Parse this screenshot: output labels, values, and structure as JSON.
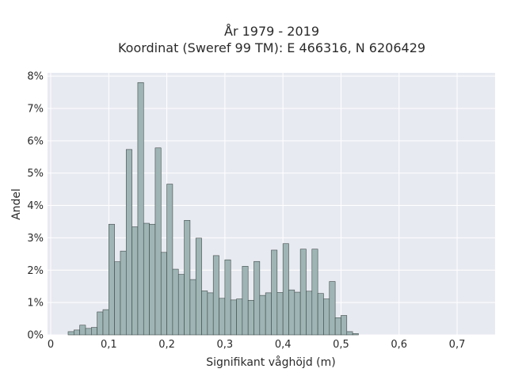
{
  "chart_data": {
    "type": "bar",
    "title": [
      "År 1979 - 2019",
      "Koordinat (Sweref 99 TM): E 466316, N 6206429"
    ],
    "xlabel": "Signifikant våghöjd (m)",
    "ylabel": "Andel",
    "xlim": [
      0,
      0.76
    ],
    "ylim": [
      0,
      0.081
    ],
    "x_ticks": [
      0,
      0.1,
      0.2,
      0.3,
      0.4,
      0.5,
      0.6,
      0.7
    ],
    "x_tick_labels": [
      "0",
      "0,1",
      "0,2",
      "0,3",
      "0,4",
      "0,5",
      "0,6",
      "0,7"
    ],
    "y_ticks": [
      0,
      0.01,
      0.02,
      0.03,
      0.04,
      0.05,
      0.06,
      0.07,
      0.08
    ],
    "y_tick_labels": [
      "0%",
      "1%",
      "2%",
      "3%",
      "4%",
      "5%",
      "6%",
      "7%",
      "8%"
    ],
    "grid": true,
    "bin_width": 0.01,
    "bin_start": 0.03,
    "values": [
      0.001,
      0.0015,
      0.003,
      0.002,
      0.0023,
      0.0071,
      0.0078,
      0.0342,
      0.0226,
      0.0259,
      0.0573,
      0.0334,
      0.078,
      0.0345,
      0.0342,
      0.0578,
      0.0255,
      0.0466,
      0.0203,
      0.0187,
      0.0354,
      0.0171,
      0.0299,
      0.0136,
      0.013,
      0.0245,
      0.0113,
      0.0232,
      0.0108,
      0.0111,
      0.0212,
      0.0107,
      0.0227,
      0.0122,
      0.013,
      0.0262,
      0.0131,
      0.0282,
      0.0139,
      0.0132,
      0.0265,
      0.0135,
      0.0265,
      0.0128,
      0.0111,
      0.0165,
      0.0053,
      0.006,
      0.001,
      0.0004
    ]
  },
  "colors": {
    "plot_bg": "#e8eaf1",
    "grid": "#ffffff",
    "bar_fill": "#9fb5b5",
    "bar_stroke": "#3f4a4a"
  }
}
